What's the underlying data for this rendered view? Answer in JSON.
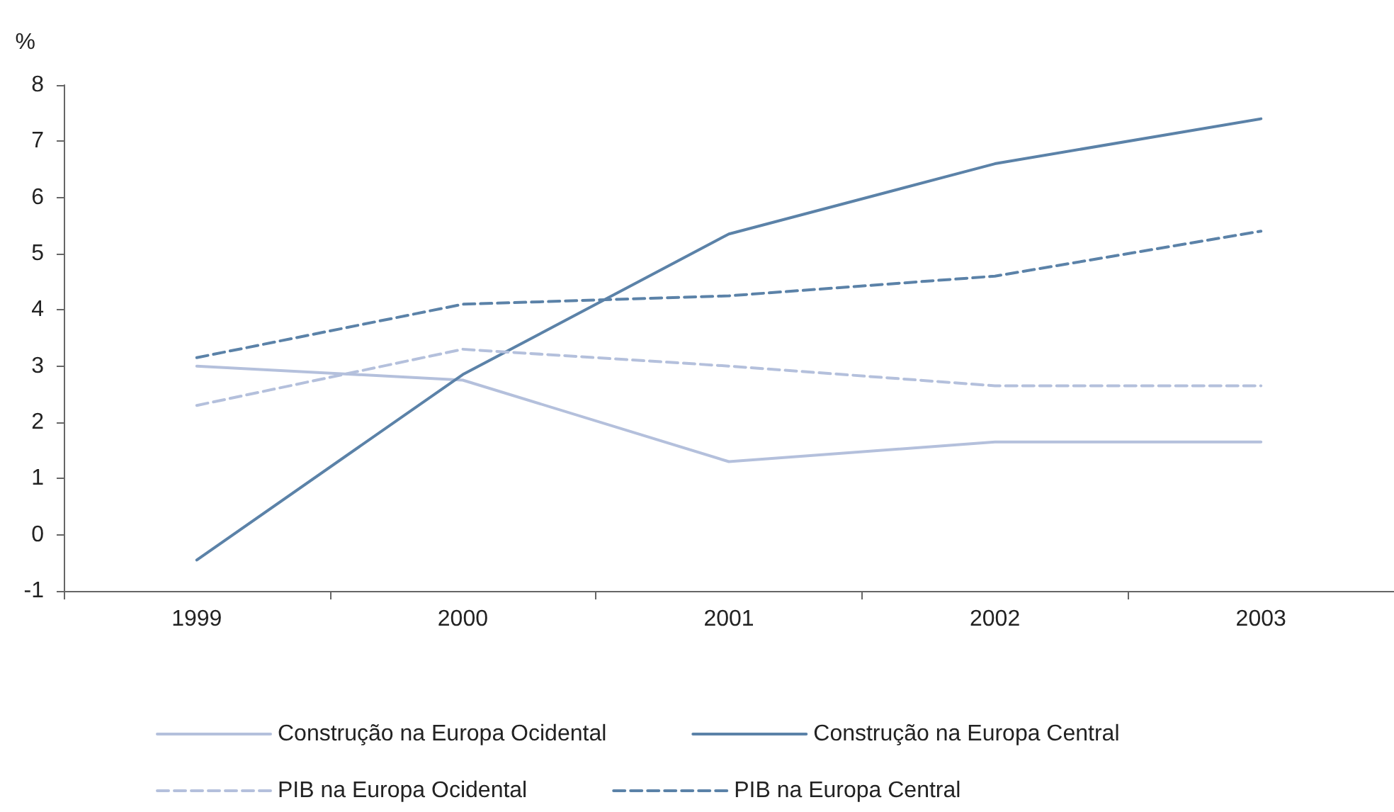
{
  "chart_data": {
    "type": "line",
    "ylabel": "%",
    "categories": [
      "1999",
      "2000",
      "2001",
      "2002",
      "2003"
    ],
    "series": [
      {
        "name": "Construção na Europa Ocidental",
        "color": "#b4c0dc",
        "line_style": "solid",
        "values": [
          3.0,
          2.75,
          1.3,
          1.65,
          1.65
        ]
      },
      {
        "name": "Construção na Europa Central",
        "color": "#5b82a8",
        "line_style": "solid",
        "values": [
          -0.45,
          2.85,
          5.35,
          6.6,
          7.4
        ]
      },
      {
        "name": "PIB na Europa Ocidental",
        "color": "#b4c0dc",
        "line_style": "dashed",
        "values": [
          2.3,
          3.3,
          3.0,
          2.65,
          2.65
        ]
      },
      {
        "name": "PIB na Europa Central",
        "color": "#5b82a8",
        "line_style": "dashed",
        "values": [
          3.15,
          4.1,
          4.25,
          4.6,
          5.4
        ]
      }
    ],
    "ylim": [
      -1,
      8
    ],
    "yticks": [
      -1,
      0,
      1,
      2,
      3,
      4,
      5,
      6,
      7,
      8
    ],
    "grid": false,
    "legend": "bottom",
    "marker": "none"
  }
}
